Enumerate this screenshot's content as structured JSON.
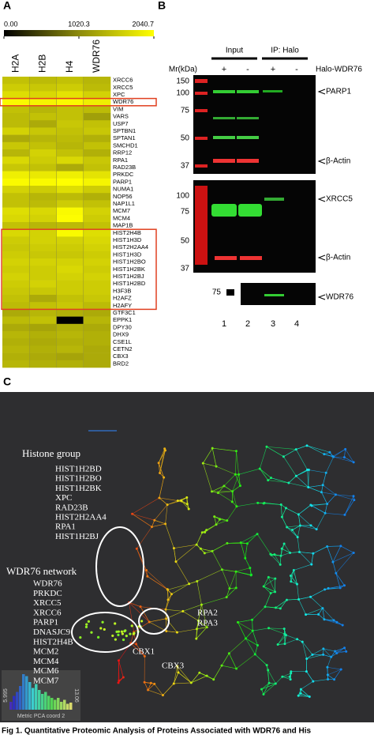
{
  "panel_a": {
    "label": "A",
    "colorbar": {
      "ticks": [
        {
          "value": 0,
          "label": "0.00"
        },
        {
          "value": 1020.3,
          "label": "1020.3"
        },
        {
          "value": 2040.7,
          "label": "2040.7"
        }
      ],
      "colors": [
        "#000000",
        "#8c8a0c",
        "#ffff00"
      ]
    },
    "heatmap": {
      "columns": [
        "H2A",
        "H2B",
        "H4",
        "WDR76"
      ],
      "rows": [
        "XRCC6",
        "XRCC5",
        "XPC",
        "WDR76",
        "VIM",
        "VARS",
        "USP7",
        "SPTBN1",
        "SPTAN1",
        "SMCHD1",
        "RRP12",
        "RPA1",
        "RAD23B",
        "PRKDC",
        "PARP1",
        "NUMA1",
        "NOP56",
        "NAP1L1",
        "MCM7",
        "MCM4",
        "MAP1B",
        "HIST2H4B",
        "HIST1H3D",
        "HIST2H2AA4",
        "HIST1H3D",
        "HIST1H2BO",
        "HIST1H2BK",
        "HIST1H2BJ",
        "HIST1H2BD",
        "H3F3B",
        "H2AFZ",
        "H2AFY",
        "GTF3C1",
        "EPPK1",
        "DPY30",
        "DHX9",
        "CSE1L",
        "CETN2",
        "CBX3",
        "BRD2"
      ],
      "values": [
        [
          1500,
          1450,
          1500,
          1400
        ],
        [
          1600,
          1550,
          1600,
          1450
        ],
        [
          1750,
          1700,
          1800,
          1650
        ],
        [
          2000,
          1950,
          2000,
          1900
        ],
        [
          1500,
          1400,
          1500,
          1450
        ],
        [
          1450,
          1500,
          1500,
          1200
        ],
        [
          1450,
          1300,
          1550,
          1500
        ],
        [
          1650,
          1550,
          1500,
          1550
        ],
        [
          1300,
          1400,
          1450,
          1350
        ],
        [
          1550,
          1500,
          1400,
          1500
        ],
        [
          1400,
          1650,
          1500,
          1350
        ],
        [
          1700,
          1600,
          1700,
          1550
        ],
        [
          1550,
          1500,
          1300,
          1500
        ],
        [
          1900,
          1850,
          1900,
          1800
        ],
        [
          2000,
          2000,
          2040,
          1950
        ],
        [
          1650,
          1600,
          1750,
          1600
        ],
        [
          1500,
          1400,
          1450,
          1350
        ],
        [
          1500,
          1450,
          1600,
          1500
        ],
        [
          1750,
          1700,
          2000,
          1650
        ],
        [
          1700,
          1650,
          2020,
          1600
        ],
        [
          1500,
          1400,
          1450,
          1500
        ],
        [
          1700,
          1650,
          2000,
          1750
        ],
        [
          1600,
          1650,
          1650,
          1700
        ],
        [
          1550,
          1600,
          1600,
          1650
        ],
        [
          1600,
          1550,
          1550,
          1600
        ],
        [
          1650,
          1650,
          1650,
          1650
        ],
        [
          1600,
          1600,
          1700,
          1600
        ],
        [
          1650,
          1600,
          1650,
          1650
        ],
        [
          1600,
          1650,
          1600,
          1600
        ],
        [
          1550,
          1550,
          1600,
          1600
        ],
        [
          1500,
          1300,
          1500,
          1550
        ],
        [
          1450,
          1500,
          1550,
          1450
        ],
        [
          1300,
          1400,
          1350,
          1300
        ],
        [
          1450,
          1500,
          0,
          1400
        ],
        [
          1300,
          1250,
          1350,
          1300
        ],
        [
          1400,
          1350,
          1400,
          1350
        ],
        [
          1350,
          1300,
          1350,
          1350
        ],
        [
          1400,
          1350,
          1400,
          1300
        ],
        [
          1350,
          1300,
          1250,
          1300
        ],
        [
          1400,
          1350,
          1350,
          1300
        ]
      ]
    }
  },
  "panel_b": {
    "label": "B",
    "input": "Input",
    "ip": "IP: Halo",
    "mr": "Mr(kDa)",
    "bait": "Halo-WDR76",
    "signs": [
      "+",
      "-",
      "+",
      "-"
    ],
    "blot1": {
      "markers": [
        "150",
        "100",
        "75",
        "50",
        "37"
      ],
      "labels": [
        "PARP1",
        "β-Actin"
      ]
    },
    "blot2": {
      "markers": [
        "100",
        "75",
        "50",
        "37"
      ],
      "labels": [
        "XRCC5",
        "β-Actin"
      ]
    },
    "blot3": {
      "marker": "75",
      "label": "WDR76"
    },
    "lanes": [
      "1",
      "2",
      "3",
      "4"
    ]
  },
  "panel_c": {
    "label": "C",
    "histone_title": "Histone group",
    "histone_list": [
      "HIST1H2BD",
      "HIST1H2BO",
      "HIST1H2BK",
      "XPC",
      "RAD23B",
      "HIST2H2AA4",
      "RPA1",
      "HIST1H2BJ"
    ],
    "wdr76_title": "WDR76 network",
    "wdr76_list": [
      "WDR76",
      "PRKDC",
      "XRCC5",
      "XRCC6",
      "PARP1",
      "DNASJC9",
      "HIST2H4B",
      "MCM2",
      "MCM4",
      "MCM6",
      "MCM7"
    ],
    "rpa": [
      "RPA2",
      "RPA3"
    ],
    "cbx1": "CBX1",
    "cbx3": "CBX3",
    "inset": {
      "title": "Metric PCA coord 2",
      "min_label": "5.995",
      "max_label": "13.06",
      "values": [
        20,
        35,
        45,
        60,
        90,
        85,
        70,
        55,
        65,
        50,
        40,
        45,
        35,
        30,
        25,
        30,
        20,
        25,
        15,
        18
      ]
    }
  },
  "caption": "Fig 1. Quantitative Proteomic Analysis of Proteins Associated with WDR76 and His"
}
